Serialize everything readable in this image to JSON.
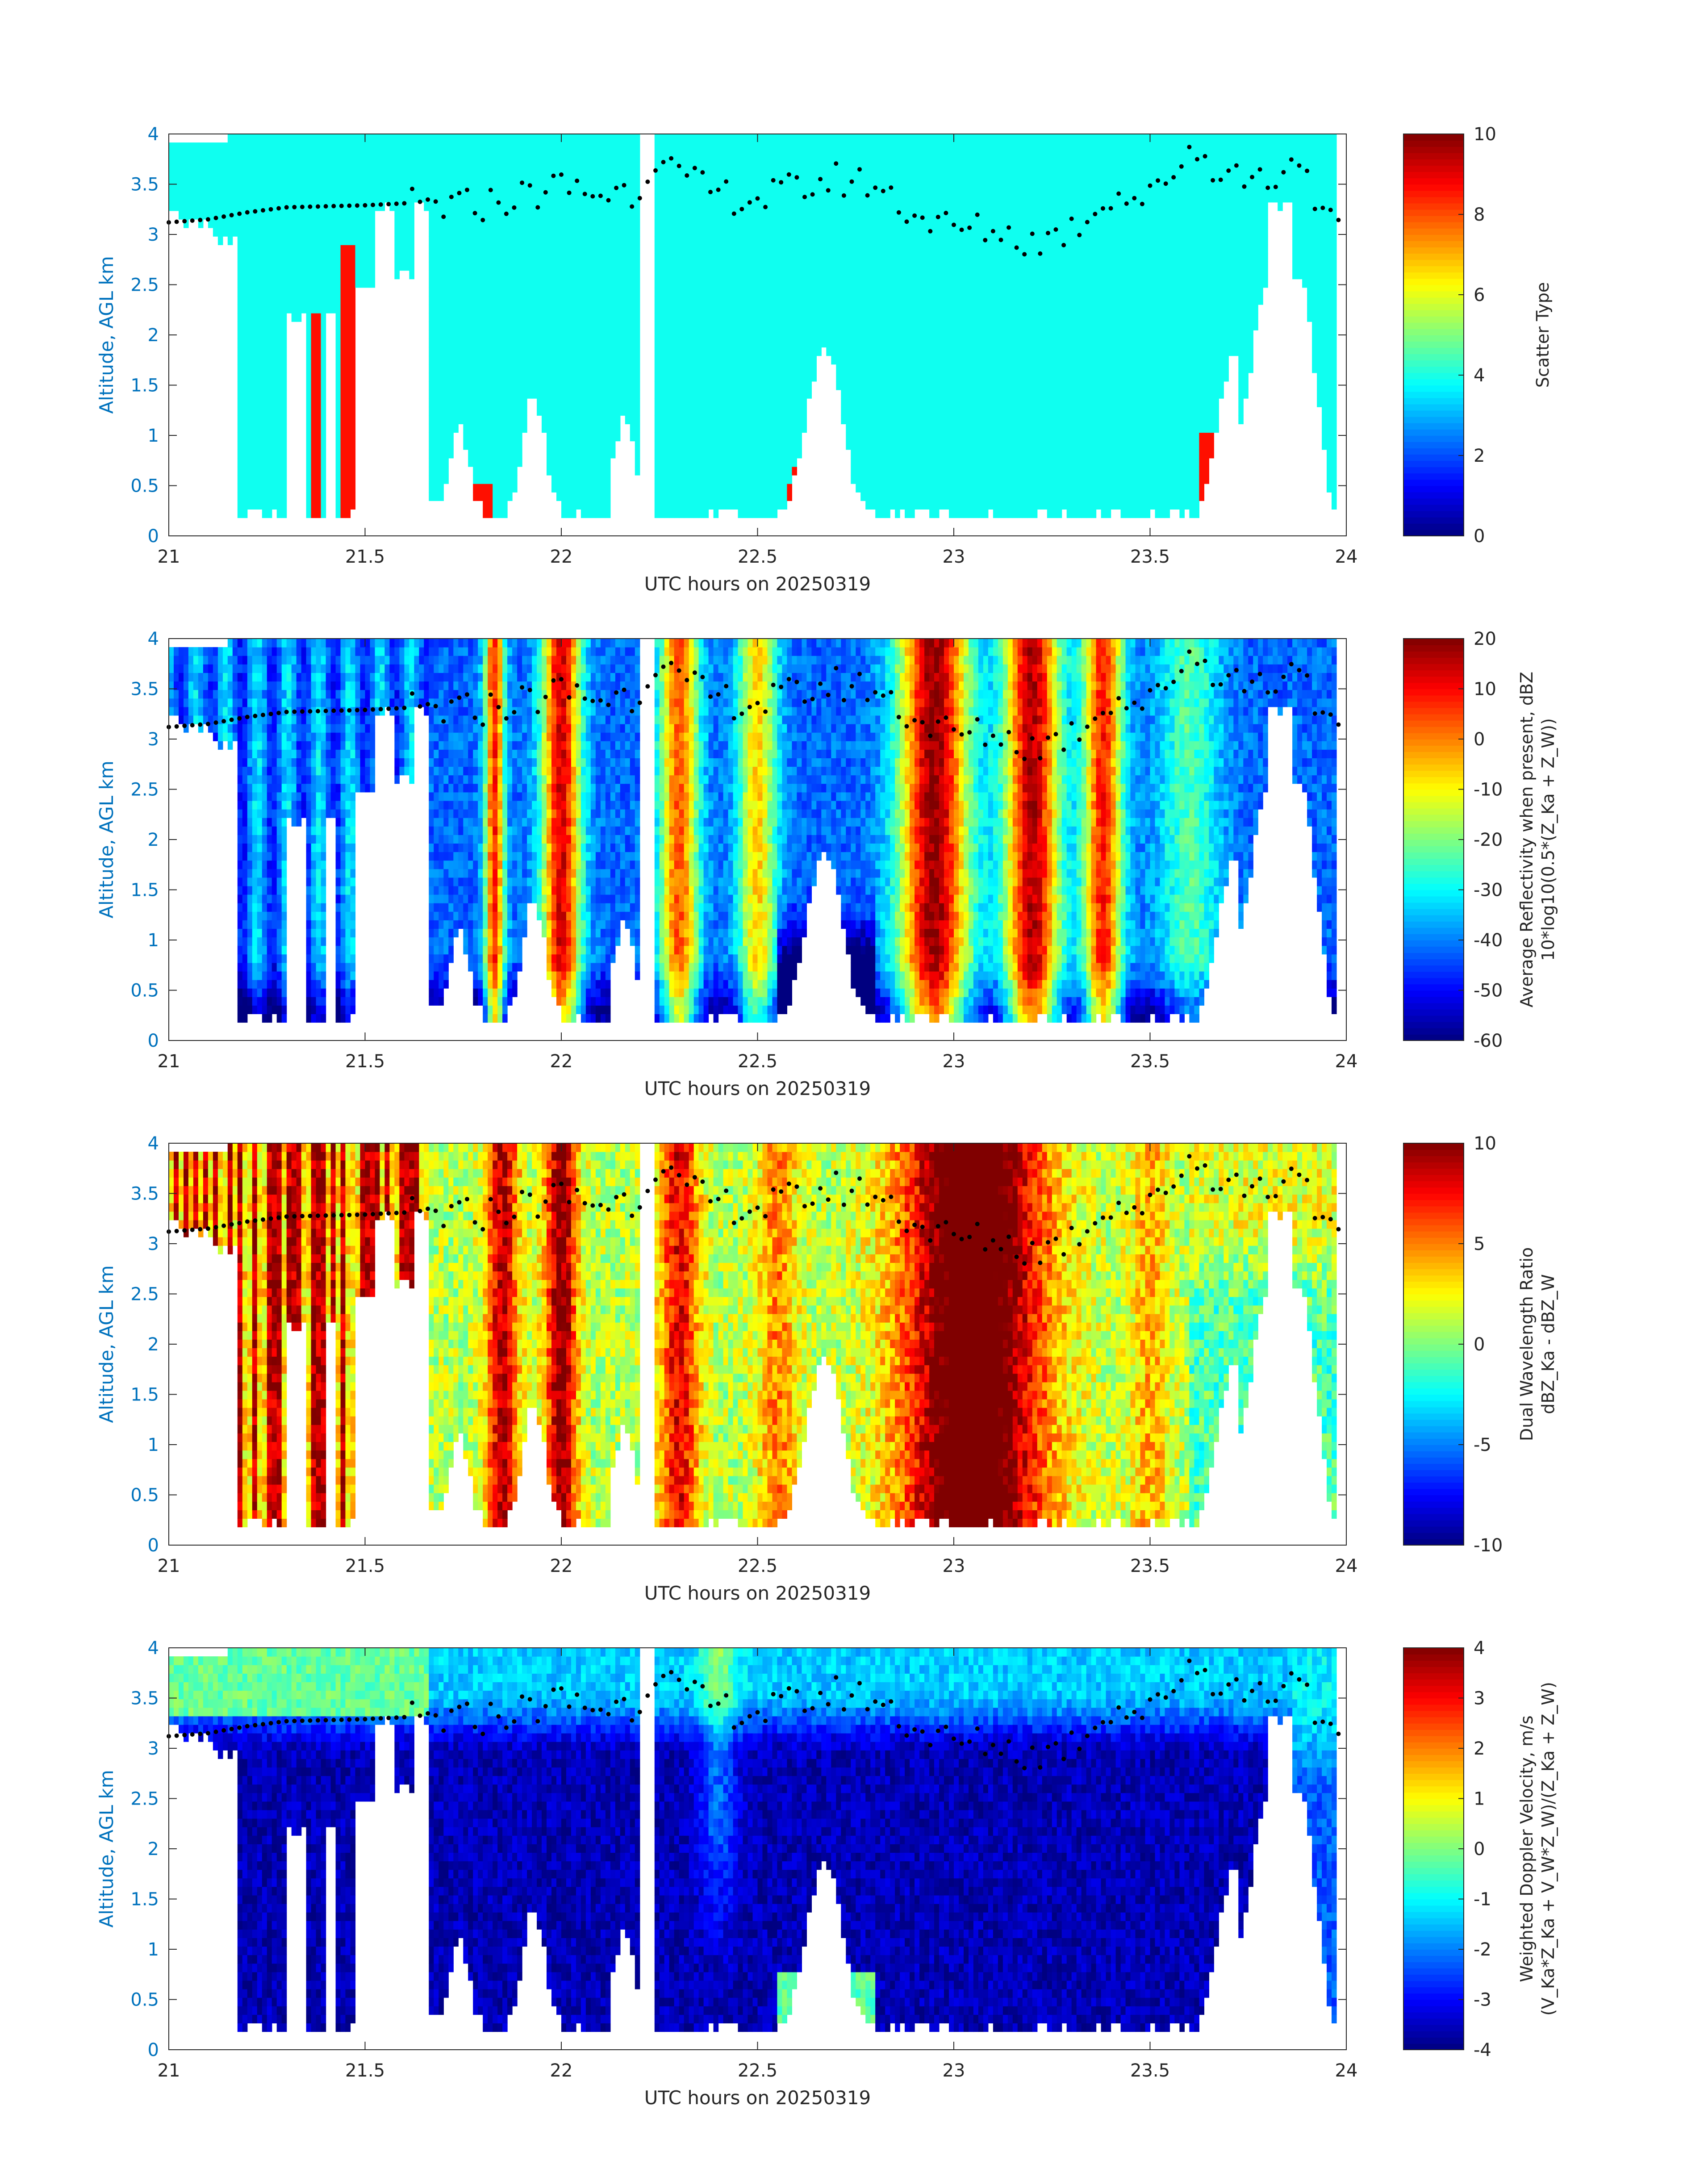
{
  "chart_data": [
    {
      "type": "heatmap",
      "xlabel": "UTC hours on 20250319",
      "ylabel": "Altitude, AGL km",
      "xlim": [
        21,
        24
      ],
      "ylim": [
        0,
        4
      ],
      "xticks": [
        "21",
        "21.5",
        "22",
        "22.5",
        "23",
        "23.5",
        "24"
      ],
      "yticks": [
        "0",
        "0.5",
        "1",
        "1.5",
        "2",
        "2.5",
        "3",
        "3.5",
        "4"
      ],
      "colorbar": {
        "label_lines": [
          "Scatter Type"
        ],
        "range": [
          0,
          10
        ],
        "ticks": [
          "0",
          "2",
          "4",
          "6",
          "8",
          "10"
        ],
        "colormap": "jet"
      },
      "field": "scatter_type"
    },
    {
      "type": "heatmap",
      "xlabel": "UTC hours on 20250319",
      "ylabel": "Altitude, AGL km",
      "xlim": [
        21,
        24
      ],
      "ylim": [
        0,
        4
      ],
      "xticks": [
        "21",
        "21.5",
        "22",
        "22.5",
        "23",
        "23.5",
        "24"
      ],
      "yticks": [
        "0",
        "0.5",
        "1",
        "1.5",
        "2",
        "2.5",
        "3",
        "3.5",
        "4"
      ],
      "colorbar": {
        "label_lines": [
          "Average Reflectivity when present, dBZ",
          "10*log10(0.5*(Z_Ka + Z_W))"
        ],
        "range": [
          -60,
          20
        ],
        "ticks": [
          "-60",
          "-50",
          "-40",
          "-30",
          "-20",
          "-10",
          "0",
          "10",
          "20"
        ],
        "colormap": "jet"
      },
      "field": "reflectivity"
    },
    {
      "type": "heatmap",
      "xlabel": "UTC hours on 20250319",
      "ylabel": "Altitude, AGL km",
      "xlim": [
        21,
        24
      ],
      "ylim": [
        0,
        4
      ],
      "xticks": [
        "21",
        "21.5",
        "22",
        "22.5",
        "23",
        "23.5",
        "24"
      ],
      "yticks": [
        "0",
        "0.5",
        "1",
        "1.5",
        "2",
        "2.5",
        "3",
        "3.5",
        "4"
      ],
      "colorbar": {
        "label_lines": [
          "Dual Wavelength Ratio",
          "dBZ_Ka - dBZ_W"
        ],
        "range": [
          -10,
          10
        ],
        "ticks": [
          "-10",
          "-5",
          "0",
          "5",
          "10"
        ],
        "colormap": "jet"
      },
      "field": "dwr"
    },
    {
      "type": "heatmap",
      "xlabel": "UTC hours on 20250319",
      "ylabel": "Altitude, AGL km",
      "xlim": [
        21,
        24
      ],
      "ylim": [
        0,
        4
      ],
      "xticks": [
        "21",
        "21.5",
        "22",
        "22.5",
        "23",
        "23.5",
        "24"
      ],
      "yticks": [
        "0",
        "0.5",
        "1",
        "1.5",
        "2",
        "2.5",
        "3",
        "3.5",
        "4"
      ],
      "colorbar": {
        "label_lines": [
          "Weighted Doppler Velocity, m/s",
          "(V_Ka*Z_Ka + V_W*Z_W)/(Z_Ka + Z_W)"
        ],
        "range": [
          -4,
          4
        ],
        "ticks": [
          "-4",
          "-3",
          "-2",
          "-1",
          "0",
          "1",
          "2",
          "3",
          "4"
        ],
        "colormap": "jet"
      },
      "field": "velocity"
    }
  ],
  "aircraft_altitude_track": {
    "times": [
      21.0,
      21.1,
      21.2,
      21.3,
      21.4,
      21.5,
      21.6,
      21.7,
      21.8,
      21.9,
      22.0,
      22.1,
      22.2,
      22.25,
      22.3,
      22.4,
      22.5,
      22.6,
      22.7,
      22.8,
      22.9,
      23.0,
      23.1,
      23.2,
      23.3,
      23.4,
      23.5,
      23.6,
      23.7,
      23.8,
      23.9
    ],
    "altitude_km": [
      3.12,
      3.15,
      3.22,
      3.27,
      3.28,
      3.29,
      3.31,
      3.27,
      3.3,
      3.38,
      3.48,
      3.4,
      3.45,
      3.9,
      3.55,
      3.4,
      3.35,
      3.45,
      3.55,
      3.5,
      3.2,
      3.05,
      3.05,
      2.92,
      3.05,
      3.4,
      3.35,
      3.85,
      3.6,
      3.55,
      3.8
    ]
  }
}
